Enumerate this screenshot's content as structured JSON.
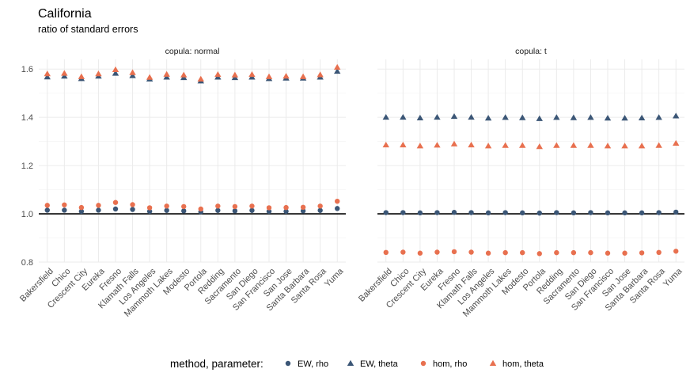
{
  "chart_data": {
    "type": "scatter",
    "title": "California",
    "subtitle": "ratio of standard errors",
    "xlabel": "",
    "ylabel": "",
    "ylim": [
      0.8,
      1.64
    ],
    "yticks": [
      0.8,
      1.0,
      1.2,
      1.4,
      1.6
    ],
    "ytick_labels": [
      "0.8",
      "1.0",
      "1.2",
      "1.4",
      "1.6"
    ],
    "reference_line": 1.0,
    "grid": true,
    "legend_position": "bottom",
    "legend_title": "method, parameter:",
    "categories": [
      "Bakersfield",
      "Chico",
      "Crescent City",
      "Eureka",
      "Fresno",
      "Klamath Falls",
      "Los Angeles",
      "Mammoth Lakes",
      "Modesto",
      "Portola",
      "Redding",
      "Sacramento",
      "San Diego",
      "San Francisco",
      "San Jose",
      "Santa Barbara",
      "Santa Rosa",
      "Yuma"
    ],
    "series_styles": [
      {
        "name": "EW, rho",
        "color": "#3b5676",
        "shape": "circle"
      },
      {
        "name": "EW, theta",
        "color": "#3b5676",
        "shape": "triangle"
      },
      {
        "name": "hom, rho",
        "color": "#e8704f",
        "shape": "circle"
      },
      {
        "name": "hom, theta",
        "color": "#e8704f",
        "shape": "triangle"
      }
    ],
    "panels": [
      {
        "label": "copula: normal",
        "series": [
          {
            "name": "EW, rho",
            "values": [
              1.015,
              1.015,
              1.01,
              1.015,
              1.02,
              1.018,
              1.01,
              1.014,
              1.012,
              1.008,
              1.014,
              1.012,
              1.014,
              1.01,
              1.01,
              1.012,
              1.014,
              1.022
            ]
          },
          {
            "name": "EW, theta",
            "values": [
              1.567,
              1.57,
              1.56,
              1.57,
              1.582,
              1.572,
              1.558,
              1.566,
              1.564,
              1.55,
              1.566,
              1.564,
              1.566,
              1.56,
              1.562,
              1.562,
              1.566,
              1.59
            ]
          },
          {
            "name": "hom, rho",
            "values": [
              1.035,
              1.037,
              1.026,
              1.035,
              1.047,
              1.038,
              1.025,
              1.032,
              1.03,
              1.02,
              1.032,
              1.03,
              1.032,
              1.025,
              1.026,
              1.027,
              1.032,
              1.052
            ]
          },
          {
            "name": "hom, theta",
            "values": [
              1.58,
              1.582,
              1.568,
              1.58,
              1.597,
              1.585,
              1.565,
              1.578,
              1.575,
              1.558,
              1.577,
              1.575,
              1.577,
              1.568,
              1.57,
              1.568,
              1.576,
              1.607
            ]
          }
        ]
      },
      {
        "label": "copula: t",
        "series": [
          {
            "name": "EW, rho",
            "values": [
              1.005,
              1.005,
              1.004,
              1.005,
              1.006,
              1.005,
              1.004,
              1.005,
              1.004,
              1.003,
              1.005,
              1.004,
              1.005,
              1.004,
              1.004,
              1.004,
              1.005,
              1.007
            ]
          },
          {
            "name": "EW, theta",
            "values": [
              1.4,
              1.4,
              1.397,
              1.4,
              1.403,
              1.4,
              1.396,
              1.399,
              1.398,
              1.394,
              1.399,
              1.398,
              1.399,
              1.396,
              1.396,
              1.397,
              1.399,
              1.405
            ]
          },
          {
            "name": "hom, rho",
            "values": [
              0.84,
              0.841,
              0.837,
              0.841,
              0.843,
              0.841,
              0.837,
              0.839,
              0.839,
              0.835,
              0.839,
              0.839,
              0.839,
              0.837,
              0.837,
              0.838,
              0.84,
              0.845
            ]
          },
          {
            "name": "hom, theta",
            "values": [
              1.285,
              1.285,
              1.281,
              1.284,
              1.289,
              1.285,
              1.281,
              1.283,
              1.283,
              1.278,
              1.283,
              1.283,
              1.283,
              1.281,
              1.281,
              1.281,
              1.283,
              1.292
            ]
          }
        ]
      }
    ]
  }
}
